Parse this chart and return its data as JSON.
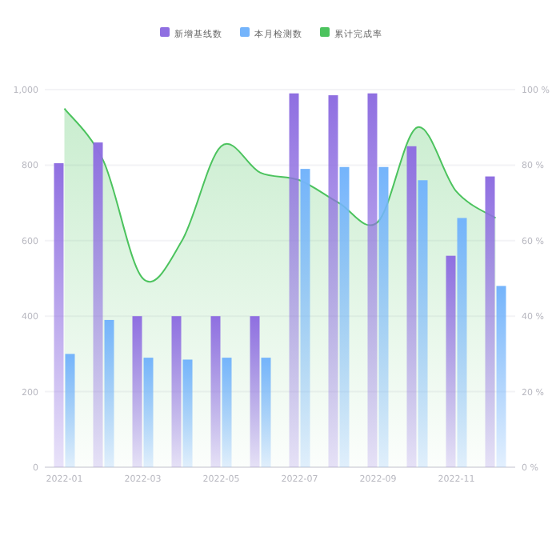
{
  "chart_data": {
    "type": "bar",
    "categories": [
      "2022-01",
      null,
      "2022-03",
      null,
      "2022-05",
      null,
      "2022-07",
      null,
      "2022-09",
      null,
      "2022-11",
      null
    ],
    "series": [
      {
        "name": "新增基线数",
        "color": "#8f6fe1",
        "values": [
          805,
          860,
          400,
          400,
          400,
          400,
          990,
          985,
          990,
          850,
          560,
          770
        ]
      },
      {
        "name": "本月检测数",
        "color": "#74b4fb",
        "values": [
          300,
          390,
          290,
          285,
          290,
          290,
          790,
          795,
          795,
          760,
          660,
          480
        ]
      },
      {
        "name": "累计完成率",
        "type": "area",
        "axis": "y2",
        "color": "#4cc35e",
        "values": [
          95,
          81,
          50,
          60,
          85,
          78,
          76,
          70,
          65,
          90,
          73,
          66
        ]
      }
    ],
    "ylim": [
      0,
      1000
    ],
    "yticks": [
      0,
      200,
      400,
      600,
      800,
      {
        "value": 1000,
        "label": "1,000"
      }
    ],
    "y2lim": [
      0,
      100
    ],
    "y2ticks": [
      {
        "value": 0,
        "label": "0 %"
      },
      {
        "value": 20,
        "label": "20 %"
      },
      {
        "value": 40,
        "label": "40 %"
      },
      {
        "value": 60,
        "label": "60 %"
      },
      {
        "value": 80,
        "label": "80 %"
      },
      {
        "value": 100,
        "label": "100 %"
      }
    ],
    "grid": "y",
    "legend": "top"
  }
}
